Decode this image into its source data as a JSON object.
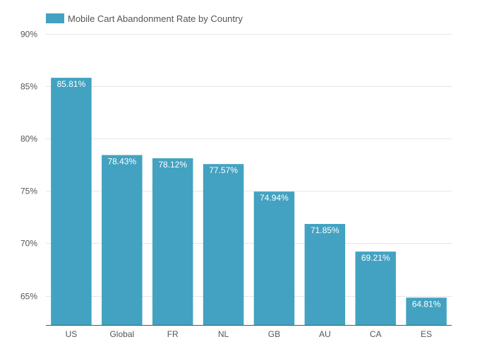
{
  "chart_data": {
    "type": "bar",
    "title": "",
    "xlabel": "",
    "ylabel": "",
    "categories": [
      "US",
      "Global",
      "FR",
      "NL",
      "GB",
      "AU",
      "CA",
      "ES"
    ],
    "series": [
      {
        "name": "Mobile Cart Abandonment Rate by Country",
        "values": [
          85.81,
          78.43,
          78.12,
          77.57,
          74.94,
          71.85,
          69.21,
          64.81
        ],
        "data_labels": [
          "85.81%",
          "78.43%",
          "78.12%",
          "77.57%",
          "74.94%",
          "71.85%",
          "69.21%",
          "64.81%"
        ]
      }
    ],
    "ylim": [
      62.2,
      90
    ],
    "yticks": [
      65,
      70,
      75,
      80,
      85,
      90
    ],
    "ytick_labels": [
      "65%",
      "70%",
      "75%",
      "80%",
      "85%",
      "90%"
    ],
    "grid": true,
    "legend_position": "top-left",
    "colors": {
      "bar": "#43a2c1",
      "grid": "#e6e6e6",
      "axis": "#555555",
      "text": "#555555",
      "data_label": "#ffffff"
    }
  }
}
